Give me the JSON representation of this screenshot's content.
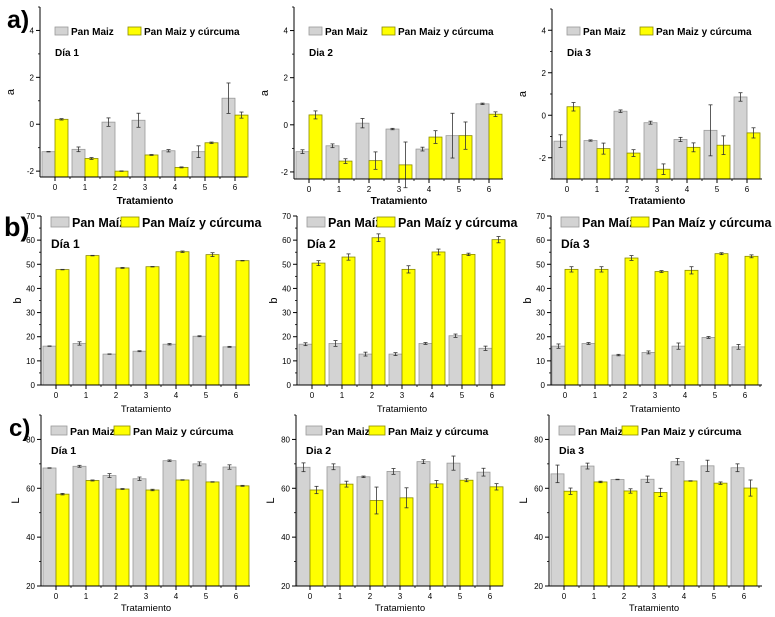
{
  "figure": {
    "panel_labels": [
      "a)",
      "b)",
      "c)"
    ]
  },
  "chart_data": [
    {
      "type": "bar",
      "row": "a",
      "title": "Día 1",
      "xlabel": "Tratamiento",
      "ylabel": "a",
      "ylim": [
        -2.25,
        5
      ],
      "yticks": [
        -2,
        0,
        2,
        4
      ],
      "yminor": 1,
      "grid": false,
      "legend": "top-left",
      "categories": [
        "0",
        "1",
        "2",
        "3",
        "4",
        "5",
        "6"
      ],
      "series": [
        {
          "name": "Pan Maiz",
          "color": "#d3d3d3",
          "edge": "#9a9a9a",
          "values": [
            -1.17,
            -1.07,
            0.09,
            0.17,
            -1.13,
            -1.17,
            1.11
          ],
          "errors": [
            0.01,
            0.1,
            0.18,
            0.3,
            0.05,
            0.25,
            0.65
          ]
        },
        {
          "name": "Pan Maiz y cúrcuma",
          "color": "#ffff00",
          "edge": "#8a8a00",
          "values": [
            0.21,
            -1.46,
            -2.0,
            -1.31,
            -1.84,
            -0.79,
            0.39
          ],
          "errors": [
            0.03,
            0.04,
            0.01,
            0.02,
            0.02,
            0.03,
            0.13
          ]
        }
      ]
    },
    {
      "type": "bar",
      "row": "a",
      "title": "Dia 2",
      "xlabel": "Tratamiento",
      "ylabel": "a",
      "ylim": [
        -2.3,
        5
      ],
      "yticks": [
        -2,
        0,
        2,
        4
      ],
      "yminor": 1,
      "grid": false,
      "legend": "top-left",
      "categories": [
        "0",
        "1",
        "2",
        "3",
        "4",
        "5",
        "6"
      ],
      "series": [
        {
          "name": "Pan Maiz",
          "color": "#d3d3d3",
          "edge": "#9a9a9a",
          "values": [
            -1.14,
            -0.89,
            0.07,
            -0.18,
            -1.03,
            -0.46,
            0.89
          ],
          "errors": [
            0.08,
            0.08,
            0.2,
            0.03,
            0.08,
            0.95,
            0.03
          ]
        },
        {
          "name": "Pan Maiz y cúrcuma",
          "color": "#ffff00",
          "edge": "#8a8a00",
          "values": [
            0.42,
            -1.54,
            -1.52,
            -1.7,
            -0.52,
            -0.46,
            0.45
          ],
          "errors": [
            0.17,
            0.1,
            0.37,
            0.97,
            0.27,
            0.58,
            0.1
          ]
        }
      ]
    },
    {
      "type": "bar",
      "row": "a",
      "title": "Dia 3",
      "xlabel": "Tratamiento",
      "ylabel": "a",
      "ylim": [
        -3,
        5
      ],
      "yticks": [
        -2,
        0,
        2,
        4
      ],
      "yminor": 1,
      "grid": false,
      "legend": "top-left",
      "categories": [
        "0",
        "1",
        "2",
        "3",
        "4",
        "5",
        "6"
      ],
      "series": [
        {
          "name": "Pan Maiz",
          "color": "#d3d3d3",
          "edge": "#9a9a9a",
          "values": [
            -1.22,
            -1.19,
            0.19,
            -0.35,
            -1.14,
            -0.71,
            0.86
          ],
          "errors": [
            0.3,
            0.03,
            0.06,
            0.07,
            0.1,
            1.2,
            0.2
          ]
        },
        {
          "name": "Pan Maiz y cúrcuma",
          "color": "#ffff00",
          "edge": "#8a8a00",
          "values": [
            0.4,
            -1.57,
            -1.78,
            -2.54,
            -1.51,
            -1.41,
            -0.83
          ],
          "errors": [
            0.2,
            0.26,
            0.16,
            0.25,
            0.21,
            0.44,
            0.24
          ]
        }
      ]
    },
    {
      "type": "bar",
      "row": "b",
      "title": "Día 1",
      "xlabel": "Tratamiento",
      "ylabel": "b",
      "ylim": [
        0,
        70
      ],
      "yticks": [
        0,
        10,
        20,
        30,
        40,
        50,
        60,
        70
      ],
      "yminor": 5,
      "grid": false,
      "legend": "top-left",
      "categories": [
        "0",
        "1",
        "2",
        "3",
        "4",
        "5",
        "6"
      ],
      "series": [
        {
          "name": "Pan Maíz",
          "color": "#d3d3d3",
          "edge": "#9a9a9a",
          "values": [
            16.1,
            17.2,
            12.8,
            14.0,
            16.9,
            20.2,
            15.8
          ],
          "errors": [
            0.1,
            0.7,
            0.1,
            0.2,
            0.3,
            0.2,
            0.2
          ]
        },
        {
          "name": "Pan Maíz y cúrcuma",
          "color": "#ffff00",
          "edge": "#8a8a00",
          "values": [
            47.8,
            53.6,
            48.5,
            49.0,
            55.2,
            54.0,
            51.5
          ],
          "errors": [
            0.1,
            0.1,
            0.2,
            0.1,
            0.3,
            0.8,
            0.1
          ]
        }
      ]
    },
    {
      "type": "bar",
      "row": "b",
      "title": "Día 2",
      "xlabel": "Tratamiento",
      "ylabel": "b",
      "ylim": [
        0,
        70
      ],
      "yticks": [
        0,
        10,
        20,
        30,
        40,
        50,
        60,
        70
      ],
      "yminor": 5,
      "grid": false,
      "legend": "top-left",
      "categories": [
        "0",
        "1",
        "2",
        "3",
        "4",
        "5",
        "6"
      ],
      "series": [
        {
          "name": "Pan Maíz",
          "color": "#d3d3d3",
          "edge": "#9a9a9a",
          "values": [
            16.9,
            17.2,
            12.8,
            12.8,
            17.2,
            20.4,
            15.2
          ],
          "errors": [
            0.6,
            1.2,
            0.8,
            0.6,
            0.4,
            0.7,
            0.9
          ]
        },
        {
          "name": "Pan Maíz y cúrcuma",
          "color": "#ffff00",
          "edge": "#8a8a00",
          "values": [
            50.5,
            53.0,
            61.0,
            47.9,
            55.1,
            54.1,
            60.2
          ],
          "errors": [
            1.0,
            1.3,
            1.6,
            1.5,
            1.2,
            0.5,
            1.3
          ]
        }
      ]
    },
    {
      "type": "bar",
      "row": "b",
      "title": "Día 3",
      "xlabel": "Tratamiento",
      "ylabel": "b",
      "ylim": [
        0,
        70
      ],
      "yticks": [
        0,
        10,
        20,
        30,
        40,
        50,
        60,
        70
      ],
      "yminor": 5,
      "grid": false,
      "legend": "top-left",
      "categories": [
        "0",
        "1",
        "2",
        "3",
        "4",
        "5",
        "6"
      ],
      "series": [
        {
          "name": "Pan Maíz",
          "color": "#d3d3d3",
          "edge": "#9a9a9a",
          "values": [
            16.1,
            17.2,
            12.4,
            13.5,
            16.1,
            19.7,
            15.8
          ],
          "errors": [
            0.9,
            0.4,
            0.3,
            0.6,
            1.3,
            0.4,
            1.0
          ]
        },
        {
          "name": "Pan Maíz y cúrcuma",
          "color": "#ffff00",
          "edge": "#8a8a00",
          "values": [
            47.9,
            47.9,
            52.6,
            47.0,
            47.5,
            54.4,
            53.3
          ],
          "errors": [
            1.1,
            1.1,
            1.0,
            0.4,
            1.5,
            0.4,
            0.6
          ]
        }
      ]
    },
    {
      "type": "bar",
      "row": "c",
      "title": "Día 1",
      "xlabel": "Tratamiento",
      "ylabel": "L",
      "ylim": [
        20,
        90
      ],
      "yticks": [
        20,
        40,
        60,
        80
      ],
      "yminor": 10,
      "grid": false,
      "legend": "top-left",
      "categories": [
        "0",
        "1",
        "2",
        "3",
        "4",
        "5",
        "6"
      ],
      "series": [
        {
          "name": "Pan Maiz",
          "color": "#d3d3d3",
          "edge": "#9a9a9a",
          "values": [
            68.3,
            69.0,
            65.2,
            63.9,
            71.3,
            70.0,
            68.7
          ],
          "errors": [
            0.1,
            0.4,
            0.8,
            0.7,
            0.3,
            0.8,
            0.9
          ]
        },
        {
          "name": "Pan Maiz y cúrcuma",
          "color": "#ffff00",
          "edge": "#8a8a00",
          "values": [
            57.6,
            63.2,
            59.7,
            59.3,
            63.4,
            62.6,
            61.0
          ],
          "errors": [
            0.3,
            0.2,
            0.2,
            0.3,
            0.1,
            0.1,
            0.2
          ]
        }
      ]
    },
    {
      "type": "bar",
      "row": "c",
      "title": "Dia 2",
      "xlabel": "Tratamiento",
      "ylabel": "L",
      "ylim": [
        20,
        90
      ],
      "yticks": [
        20,
        40,
        60,
        80
      ],
      "yminor": 10,
      "grid": false,
      "legend": "top-left",
      "categories": [
        "0",
        "1",
        "2",
        "3",
        "4",
        "5",
        "6"
      ],
      "series": [
        {
          "name": "Pan Maiz",
          "color": "#d3d3d3",
          "edge": "#9a9a9a",
          "values": [
            68.6,
            68.8,
            64.7,
            66.9,
            70.9,
            70.3,
            66.6
          ],
          "errors": [
            1.8,
            1.2,
            0.3,
            1.2,
            0.8,
            2.9,
            1.6
          ]
        },
        {
          "name": "Pan Maiz y cúrcuma",
          "color": "#ffff00",
          "edge": "#8a8a00",
          "values": [
            59.3,
            61.7,
            55.0,
            56.1,
            61.8,
            63.3,
            60.6
          ],
          "errors": [
            1.5,
            1.2,
            5.5,
            4.1,
            1.4,
            0.6,
            1.3
          ]
        }
      ]
    },
    {
      "type": "bar",
      "row": "c",
      "title": "Dia 3",
      "xlabel": "Tratamiento",
      "ylabel": "L",
      "ylim": [
        20,
        90
      ],
      "yticks": [
        20,
        40,
        60,
        80
      ],
      "yminor": 10,
      "grid": false,
      "legend": "top-left",
      "categories": [
        "0",
        "1",
        "2",
        "3",
        "4",
        "5",
        "6"
      ],
      "series": [
        {
          "name": "Pan Maiz",
          "color": "#d3d3d3",
          "edge": "#9a9a9a",
          "values": [
            65.9,
            69.1,
            63.6,
            63.7,
            70.9,
            69.2,
            68.4
          ],
          "errors": [
            3.6,
            1.2,
            0.1,
            1.3,
            1.3,
            2.3,
            1.6
          ]
        },
        {
          "name": "Pan Maiz y cúrcuma",
          "color": "#ffff00",
          "edge": "#8a8a00",
          "values": [
            58.8,
            62.6,
            58.9,
            58.3,
            63.0,
            62.1,
            60.1
          ],
          "errors": [
            1.3,
            0.3,
            0.9,
            1.7,
            0.1,
            0.5,
            3.3
          ]
        }
      ]
    }
  ]
}
